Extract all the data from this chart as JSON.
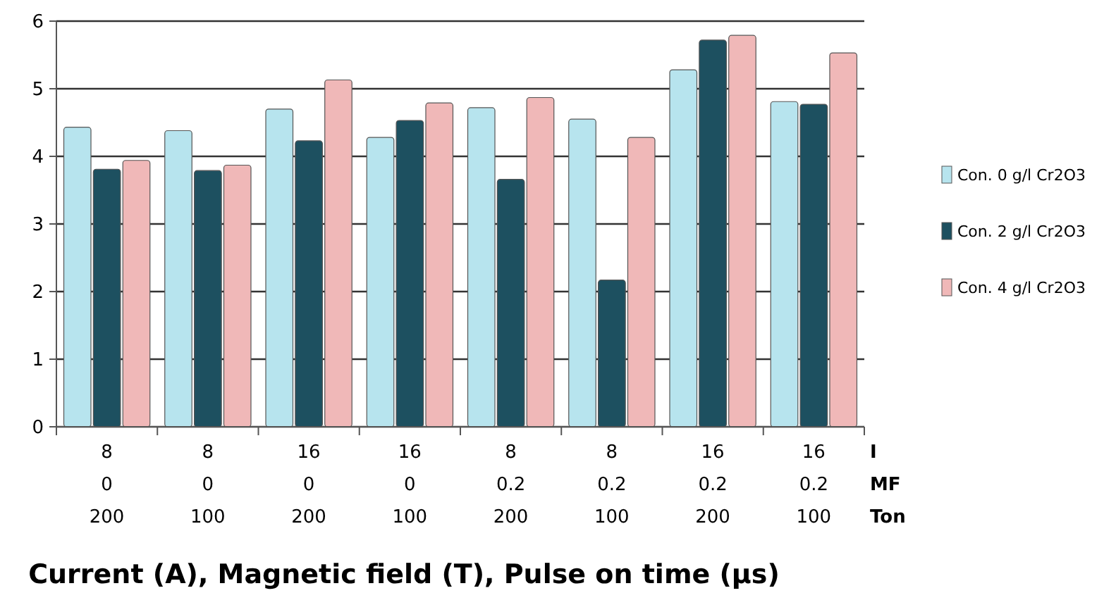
{
  "chart_data": {
    "type": "bar",
    "xlabel": "Current (A), Magnetic field (T), Pulse on time (µs)",
    "categories": [
      "8\n0\n200",
      "8\n0\n100",
      "16\n0\n200",
      "16\n0\n100",
      "8\n0.2\n200",
      "8\n0.2\n100",
      "16\n0.2\n200",
      "16\n0.2\n100"
    ],
    "series": [
      {
        "name": "Con. 0 g/l Cr2O3",
        "color": "#b7e4ee",
        "values": [
          4.43,
          4.38,
          4.7,
          4.28,
          4.72,
          4.55,
          5.28,
          4.81
        ]
      },
      {
        "name": "Con. 2 g/l Cr2O3",
        "color": "#1d5060",
        "values": [
          3.81,
          3.79,
          4.23,
          4.53,
          3.66,
          2.17,
          5.72,
          4.77
        ]
      },
      {
        "name": "Con. 4 g/l Cr2O3",
        "color": "#f0b8b8",
        "values": [
          3.94,
          3.87,
          5.13,
          4.79,
          4.87,
          4.28,
          5.79,
          5.53
        ]
      }
    ],
    "annotations": [
      "I",
      "MF",
      "Ton"
    ],
    "ylim": [
      0,
      6
    ],
    "yticks": [
      0,
      1,
      2,
      3,
      4,
      5,
      6
    ],
    "grid": "y",
    "legend": "right"
  }
}
